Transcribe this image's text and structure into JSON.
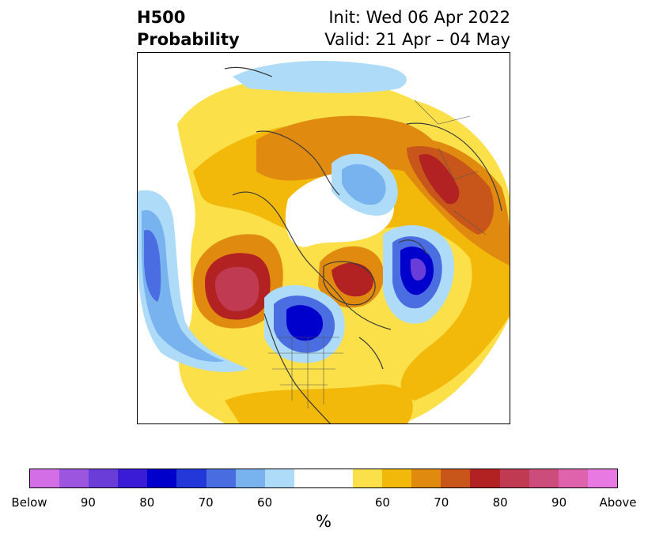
{
  "title": {
    "variable": "H500",
    "product": "Probability",
    "init": "Init: Wed 06 Apr 2022",
    "valid": "Valid: 21 Apr – 04 May"
  },
  "map": {
    "projection": "north polar stereographic",
    "overlays": [
      "coastlines",
      "country-borders",
      "us-state-borders"
    ]
  },
  "colorbar": {
    "unit": "%",
    "tick_labels": [
      "Below",
      "90",
      "80",
      "70",
      "60",
      "60",
      "70",
      "80",
      "90",
      "Above"
    ],
    "colors": {
      "below": [
        "#d46ee6",
        "#9b55de",
        "#6a3cd8",
        "#3a1cd6",
        "#0000cc",
        "#2338d8",
        "#4a6ee2",
        "#78b2ef",
        "#aedcf8"
      ],
      "neutral": "#ffffff",
      "above": [
        "#fbe049",
        "#f2b90a",
        "#e08a10",
        "#c8561a",
        "#b22222",
        "#c03a52",
        "#cc4c7c",
        "#de62ac",
        "#e878e2"
      ]
    }
  }
}
